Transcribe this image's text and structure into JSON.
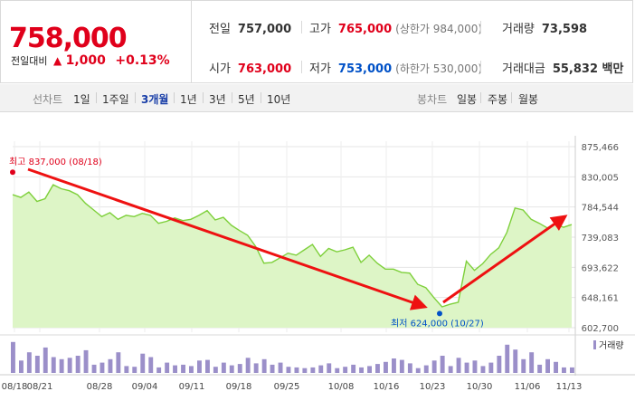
{
  "quote": {
    "price": "758,000",
    "change_label": "전일대비",
    "change_arrow": "▲",
    "change_value": "1,000",
    "change_percent": "+0.13%",
    "stats": {
      "prev_close": {
        "label": "전일",
        "value": "757,000"
      },
      "high": {
        "label": "고가",
        "value": "765,000",
        "sub": "(상한가 984,000)"
      },
      "volume": {
        "label": "거래량",
        "value": "73,598"
      },
      "open": {
        "label": "시가",
        "value": "763,000"
      },
      "low": {
        "label": "저가",
        "value": "753,000",
        "sub": "(하한가 530,000)"
      },
      "trade_amount": {
        "label": "거래대금",
        "value": "55,832 백만"
      }
    }
  },
  "tabs": {
    "line_chart_label": "선차트",
    "line_periods": [
      "1일",
      "1주일",
      "3개월",
      "1년",
      "3년",
      "5년",
      "10년"
    ],
    "active_period": "3개월",
    "candle_chart_label": "봉차트",
    "candle_periods": [
      "일봉",
      "주봉",
      "월봉"
    ]
  },
  "colors": {
    "up": "#e0001b",
    "down": "#0051c7",
    "line": "#7ed03b",
    "area": "#ddf5c6",
    "volume": "#9b8fc9",
    "arrow": "#ee1111"
  },
  "chart_data": {
    "type": "area",
    "ylim": [
      602700,
      875466
    ],
    "y_ticks": [
      "875,466",
      "830,005",
      "784,544",
      "739,083",
      "693,622",
      "648,161",
      "602,700"
    ],
    "x_tick_labels": [
      "08/18",
      "08/21",
      "08/28",
      "09/04",
      "09/11",
      "09/18",
      "09/25",
      "10/08",
      "10/16",
      "10/23",
      "10/30",
      "11/06",
      "11/13"
    ],
    "series": [
      {
        "values": [
          803000,
          799000,
          807000,
          793000,
          797000,
          818000,
          812000,
          809000,
          803000,
          790000,
          780000,
          770000,
          776000,
          766000,
          772000,
          770000,
          775000,
          772000,
          760000,
          763000,
          768000,
          764000,
          766000,
          772000,
          779000,
          765000,
          769000,
          757000,
          749000,
          742000,
          725000,
          700000,
          701000,
          708000,
          715000,
          712000,
          720000,
          728000,
          710000,
          722000,
          717000,
          720000,
          724000,
          701000,
          712000,
          700000,
          691000,
          691000,
          686000,
          685000,
          668000,
          663000,
          648000,
          634000,
          638000,
          641000,
          703000,
          689000,
          699000,
          713000,
          723000,
          746000,
          783000,
          780000,
          766000,
          760000,
          753000,
          759000,
          754000,
          758000
        ]
      }
    ],
    "annotations": {
      "high": {
        "text": "최고 837,000 (08/18)",
        "value": 837000,
        "date": "08/18"
      },
      "low": {
        "text": "최저 624,000 (10/27)",
        "value": 624000,
        "date": "10/27"
      }
    },
    "volume_legend": "거래량",
    "volume": [
      45,
      18,
      30,
      25,
      37,
      23,
      20,
      22,
      25,
      33,
      12,
      15,
      20,
      30,
      10,
      9,
      28,
      23,
      8,
      15,
      11,
      12,
      10,
      18,
      19,
      9,
      15,
      11,
      13,
      22,
      14,
      20,
      12,
      15,
      9,
      8,
      7,
      8,
      11,
      14,
      7,
      9,
      12,
      8,
      10,
      13,
      16,
      21,
      19,
      14,
      7,
      11,
      18,
      25,
      10,
      22,
      15,
      18,
      10,
      15,
      25,
      41,
      34,
      20,
      30,
      12,
      20,
      16,
      8,
      8
    ]
  }
}
